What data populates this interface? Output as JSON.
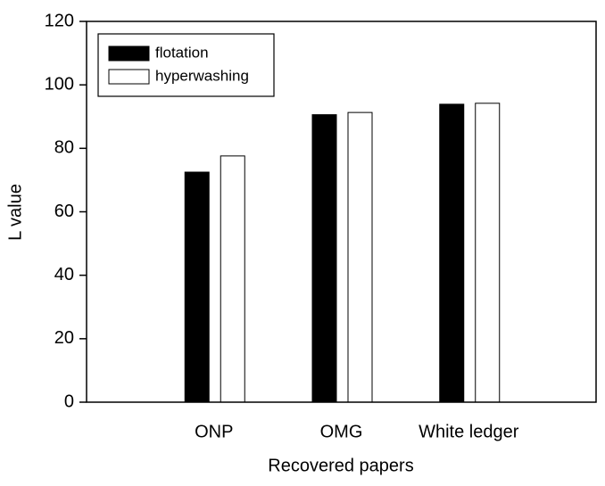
{
  "chart_data": {
    "type": "bar",
    "x_label": "Recovered papers",
    "y_label": "L value",
    "categories": [
      "ONP",
      "OMG",
      "White ledger"
    ],
    "series": [
      {
        "name": "flotation",
        "color": "#000000",
        "values": [
          72.5,
          90.6,
          93.9
        ]
      },
      {
        "name": "hyperwashing",
        "color": "#ffffff",
        "values": [
          77.6,
          91.3,
          94.2
        ]
      }
    ],
    "ylim": [
      0,
      120
    ],
    "yticks": [
      0,
      20,
      40,
      60,
      80,
      100,
      120
    ],
    "legend": "upper left"
  }
}
